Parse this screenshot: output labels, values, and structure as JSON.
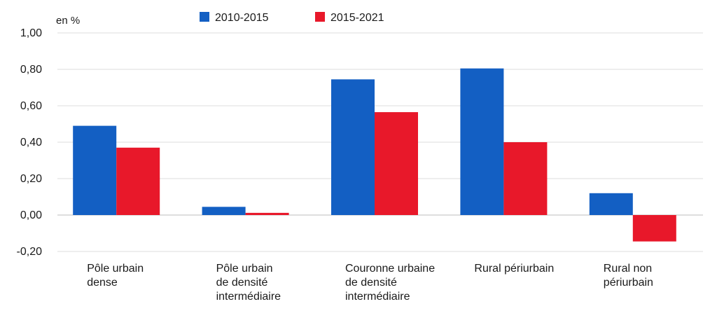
{
  "chart_data": {
    "type": "bar",
    "unit_label": "en %",
    "categories": [
      [
        "Pôle urbain",
        "dense"
      ],
      [
        "Pôle urbain",
        "de densité",
        "intermédiaire"
      ],
      [
        "Couronne urbaine",
        "de densité",
        "intermédiaire"
      ],
      [
        "Rural périurbain"
      ],
      [
        "Rural non",
        "périurbain"
      ]
    ],
    "series": [
      {
        "name": "2010-2015",
        "color": "#135fc3",
        "values": [
          0.49,
          0.045,
          0.745,
          0.805,
          0.12
        ]
      },
      {
        "name": "2015-2021",
        "color": "#e8182a",
        "values": [
          0.37,
          0.012,
          0.565,
          0.4,
          -0.145
        ]
      }
    ],
    "ylim": [
      -0.2,
      1.0
    ],
    "yticks": [
      -0.2,
      0.0,
      0.2,
      0.4,
      0.6,
      0.8,
      1.0
    ],
    "ytick_labels": [
      "-0,20",
      "0,00",
      "0,20",
      "0,40",
      "0,60",
      "0,80",
      "1,00"
    ],
    "grid": true,
    "legend_position": "top"
  }
}
